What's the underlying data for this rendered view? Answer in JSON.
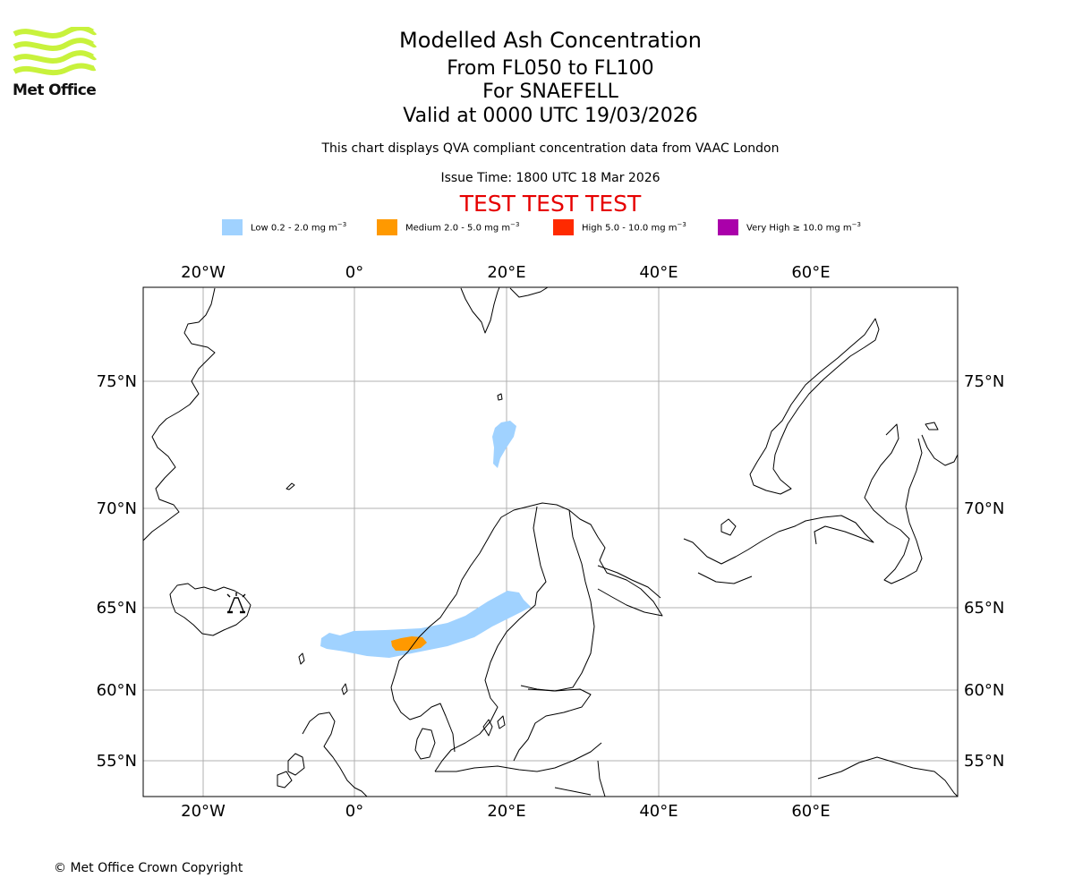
{
  "brand": {
    "logo_text": "Met Office",
    "logo_color": "#c8f23c"
  },
  "header": {
    "title": "Modelled Ash Concentration",
    "levels": "From FL050 to FL100",
    "volcano": "For SNAEFELL",
    "valid": "Valid at 0000 UTC 19/03/2026",
    "description": "This chart displays QVA compliant concentration data from VAAC London",
    "issue_time": "Issue Time: 1800 UTC 18 Mar 2026",
    "test_banner": "TEST TEST TEST",
    "test_color": "#e60000"
  },
  "legend": [
    {
      "label": "Low 0.2 - 2.0 mg m",
      "sup": "−3",
      "color": "#a0d2ff"
    },
    {
      "label": "Medium 2.0 - 5.0 mg m",
      "sup": "−3",
      "color": "#ff9900"
    },
    {
      "label": "High 5.0 - 10.0 mg m",
      "sup": "−3",
      "color": "#ff2a00"
    },
    {
      "label": "Very High  ≥  10.0 mg m",
      "sup": "−3",
      "color": "#aa00aa"
    }
  ],
  "map": {
    "lon_ticks": [
      "20°W",
      "0°",
      "20°E",
      "40°E",
      "60°E"
    ],
    "lat_ticks": [
      "75°N",
      "70°N",
      "65°N",
      "60°N",
      "55°N"
    ],
    "volcano_marker": "volcano-icon"
  },
  "footer": {
    "copyright": "© Met Office Crown Copyright"
  }
}
